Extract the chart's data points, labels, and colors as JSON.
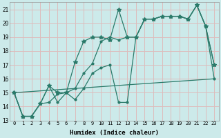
{
  "xlabel": "Humidex (Indice chaleur)",
  "xlim": [
    -0.5,
    23.5
  ],
  "ylim": [
    13,
    21.5
  ],
  "yticks": [
    13,
    14,
    15,
    16,
    17,
    18,
    19,
    20,
    21
  ],
  "xticks": [
    0,
    1,
    2,
    3,
    4,
    5,
    6,
    7,
    8,
    9,
    10,
    11,
    12,
    13,
    14,
    15,
    16,
    17,
    18,
    19,
    20,
    21,
    22,
    23
  ],
  "bg_color": "#cceaea",
  "grid_color": "#ddbcbc",
  "line_color": "#2a7a6a",
  "series": [
    {
      "x": [
        0,
        1,
        2,
        3,
        4,
        5,
        6,
        7,
        8,
        9,
        10,
        11,
        12,
        13,
        14,
        15,
        16,
        17,
        18,
        19,
        20,
        21,
        22,
        23
      ],
      "y": [
        15.0,
        13.3,
        13.3,
        14.2,
        15.5,
        15.0,
        15.0,
        17.2,
        18.7,
        19.0,
        19.0,
        18.8,
        21.0,
        19.0,
        19.0,
        20.3,
        20.3,
        20.5,
        20.5,
        20.5,
        20.3,
        21.3,
        19.8,
        17.0
      ],
      "marker": "*",
      "markersize": 4,
      "linestyle": "-"
    },
    {
      "x": [
        0,
        1,
        2,
        3,
        4,
        5,
        6,
        7,
        8,
        9,
        10,
        11,
        12,
        13,
        14,
        15,
        16,
        17,
        18,
        19,
        20,
        21,
        22,
        23
      ],
      "y": [
        15.0,
        13.3,
        13.3,
        14.2,
        14.3,
        14.9,
        15.0,
        15.3,
        16.4,
        17.1,
        18.7,
        19.0,
        18.8,
        19.0,
        19.0,
        20.3,
        20.3,
        20.5,
        20.5,
        20.5,
        20.3,
        21.3,
        19.8,
        17.0
      ],
      "marker": ".",
      "markersize": 4,
      "linestyle": "-"
    },
    {
      "x": [
        0,
        1,
        2,
        3,
        4,
        5,
        6,
        7,
        8,
        9,
        10,
        11,
        12,
        13,
        14,
        15,
        16,
        17,
        18,
        19,
        20,
        21,
        22,
        23
      ],
      "y": [
        15.0,
        13.3,
        13.3,
        14.2,
        15.5,
        14.3,
        15.0,
        14.5,
        15.3,
        16.4,
        16.8,
        17.0,
        14.3,
        14.3,
        19.0,
        20.3,
        20.3,
        20.5,
        20.5,
        20.5,
        20.3,
        21.3,
        19.8,
        16.0
      ],
      "marker": ".",
      "markersize": 4,
      "linestyle": "-"
    },
    {
      "x": [
        0,
        23
      ],
      "y": [
        15.0,
        16.0
      ],
      "marker": null,
      "markersize": 0,
      "linestyle": "-"
    }
  ]
}
